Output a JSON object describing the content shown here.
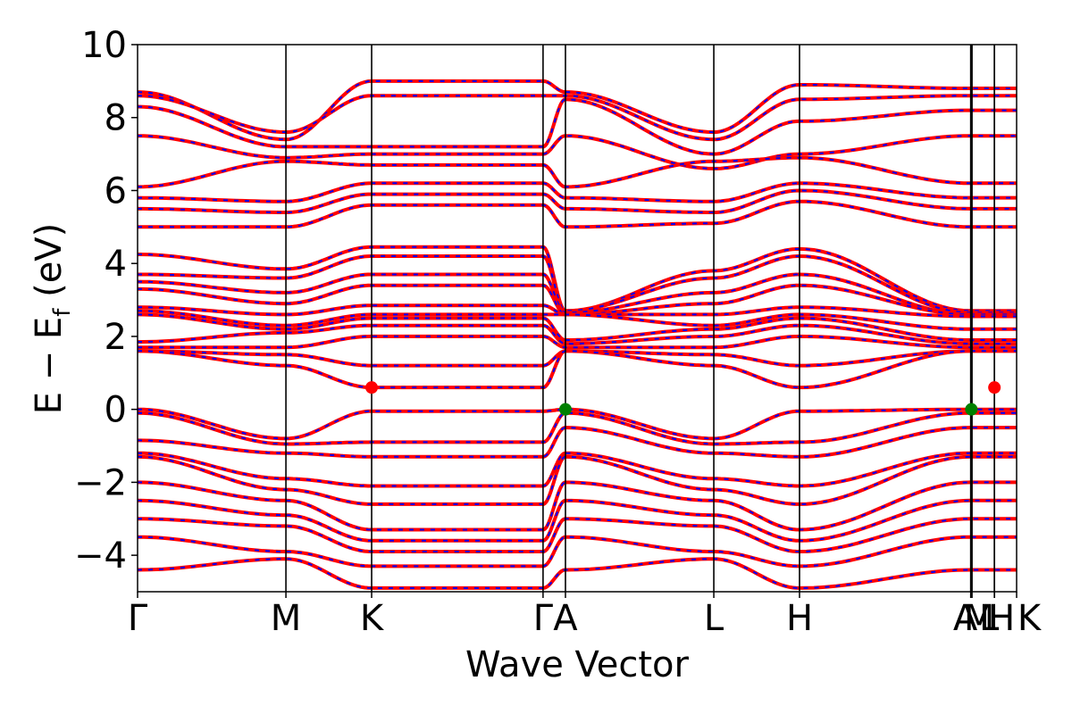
{
  "chart_data": {
    "type": "line",
    "title": "",
    "xlabel": "Wave Vector",
    "ylabel": "E − E_f (eV)",
    "ylabel_parts": {
      "main": "E  −  E",
      "sub": "f",
      "unit": " (eV)"
    },
    "ylim": [
      -5,
      10
    ],
    "yticks": [
      {
        "value": 10,
        "label": "10"
      },
      {
        "value": 8,
        "label": "8"
      },
      {
        "value": 6,
        "label": "6"
      },
      {
        "value": 4,
        "label": "4"
      },
      {
        "value": 2,
        "label": "2"
      },
      {
        "value": 0,
        "label": "0"
      },
      {
        "value": -2,
        "label": "−2"
      },
      {
        "value": -4,
        "label": "−4"
      }
    ],
    "xlim": [
      0,
      4.041
    ],
    "high_symmetry_points": [
      {
        "label": "Γ",
        "x": 0.0
      },
      {
        "label": "M",
        "x": 0.682
      },
      {
        "label": "K",
        "x": 1.076
      },
      {
        "label": "Γ",
        "x": 1.864
      },
      {
        "label": "A",
        "x": 1.967
      },
      {
        "label": "L",
        "x": 2.649
      },
      {
        "label": "H",
        "x": 3.043
      },
      {
        "label": "A",
        "x": 3.83
      },
      {
        "label": "M",
        "x": 3.836
      },
      {
        "label": "L",
        "x": 3.939
      },
      {
        "label": "H",
        "x": 3.939
      },
      {
        "label": "K",
        "x": 4.041
      }
    ],
    "grid": false,
    "legend": "none",
    "series_colors": {
      "band_main": "#ff0000",
      "band_overlay": "#0000ff"
    },
    "band_edge_markers": [
      {
        "role": "conduction band minimum",
        "x": 1.076,
        "y": 0.6,
        "color": "#ff0000"
      },
      {
        "role": "valence band maximum",
        "x": 1.967,
        "y": 0.0,
        "color": "#008000"
      },
      {
        "role": "valence band maximum",
        "x": 3.833,
        "y": 0.0,
        "color": "#008000"
      },
      {
        "role": "conduction band minimum",
        "x": 3.939,
        "y": 0.6,
        "color": "#ff0000"
      }
    ],
    "bands": {
      "conduction": [
        [
          4.25,
          3.85,
          4.45,
          4.45,
          2.7,
          3.8,
          4.4,
          2.7,
          2.7
        ],
        [
          3.7,
          3.6,
          4.2,
          4.2,
          2.7,
          3.6,
          4.2,
          2.65,
          2.65
        ],
        [
          3.5,
          3.2,
          3.7,
          3.7,
          2.65,
          3.2,
          3.7,
          2.6,
          2.6
        ],
        [
          3.3,
          2.9,
          3.4,
          3.4,
          2.6,
          2.9,
          3.4,
          2.6,
          2.6
        ],
        [
          2.8,
          2.6,
          2.85,
          2.85,
          2.6,
          2.6,
          2.8,
          2.55,
          2.55
        ],
        [
          2.7,
          2.3,
          2.6,
          2.6,
          2.6,
          2.3,
          2.6,
          2.2,
          2.2
        ],
        [
          2.6,
          2.2,
          2.5,
          2.5,
          1.9,
          2.2,
          2.5,
          1.9,
          1.9
        ],
        [
          1.85,
          2.1,
          2.3,
          2.3,
          1.8,
          2.0,
          2.3,
          1.8,
          1.8
        ],
        [
          1.7,
          1.7,
          2.0,
          2.0,
          1.7,
          1.7,
          2.0,
          1.7,
          1.7
        ],
        [
          1.6,
          1.5,
          1.2,
          1.2,
          1.6,
          1.5,
          1.2,
          1.6,
          1.6
        ],
        [
          1.6,
          1.2,
          0.6,
          0.6,
          1.6,
          1.2,
          0.6,
          1.6,
          1.6
        ]
      ],
      "valence": [
        [
          0.0,
          -0.8,
          -0.05,
          -0.05,
          0.0,
          -0.8,
          -0.05,
          0.0,
          0.0
        ],
        [
          -0.1,
          -0.95,
          -0.9,
          -0.9,
          -0.1,
          -0.95,
          -0.9,
          -0.1,
          -0.1
        ],
        [
          -0.85,
          -1.2,
          -1.3,
          -1.3,
          -0.5,
          -1.2,
          -1.3,
          -0.5,
          -0.5
        ],
        [
          -1.2,
          -1.9,
          -2.1,
          -2.1,
          -1.2,
          -1.9,
          -2.1,
          -1.2,
          -1.2
        ],
        [
          -1.3,
          -2.2,
          -2.6,
          -2.6,
          -1.3,
          -2.2,
          -2.6,
          -1.3,
          -1.3
        ],
        [
          -2.0,
          -2.5,
          -3.3,
          -3.3,
          -2.0,
          -2.5,
          -3.3,
          -2.0,
          -2.0
        ],
        [
          -2.5,
          -2.9,
          -3.6,
          -3.6,
          -2.5,
          -2.9,
          -3.6,
          -2.5,
          -2.5
        ],
        [
          -3.0,
          -3.2,
          -3.9,
          -3.9,
          -3.0,
          -3.2,
          -3.9,
          -3.0,
          -3.0
        ],
        [
          -3.5,
          -3.9,
          -4.3,
          -4.3,
          -3.5,
          -3.9,
          -4.3,
          -3.5,
          -3.5
        ],
        [
          -4.4,
          -4.1,
          -4.9,
          -4.9,
          -4.4,
          -4.1,
          -4.9,
          -4.4,
          -4.4
        ]
      ],
      "high": [
        [
          8.7,
          7.4,
          9.0,
          9.0,
          8.7,
          7.6,
          8.9,
          8.8,
          8.8
        ],
        [
          8.6,
          7.6,
          8.6,
          8.6,
          8.6,
          7.4,
          8.5,
          8.6,
          8.6
        ],
        [
          8.3,
          7.2,
          7.2,
          7.2,
          8.5,
          7.0,
          7.9,
          8.2,
          8.2
        ],
        [
          7.5,
          6.9,
          7.0,
          7.0,
          7.5,
          6.6,
          7.0,
          7.5,
          7.5
        ],
        [
          6.1,
          6.8,
          6.7,
          6.7,
          6.1,
          6.8,
          6.9,
          6.2,
          6.2
        ],
        [
          5.8,
          5.7,
          6.2,
          6.2,
          5.8,
          5.7,
          6.2,
          5.8,
          5.8
        ],
        [
          5.5,
          5.4,
          5.9,
          5.9,
          5.5,
          5.4,
          6.0,
          5.5,
          5.5
        ],
        [
          5.0,
          5.0,
          5.6,
          5.6,
          5.0,
          5.1,
          5.7,
          5.0,
          5.0
        ]
      ]
    }
  }
}
